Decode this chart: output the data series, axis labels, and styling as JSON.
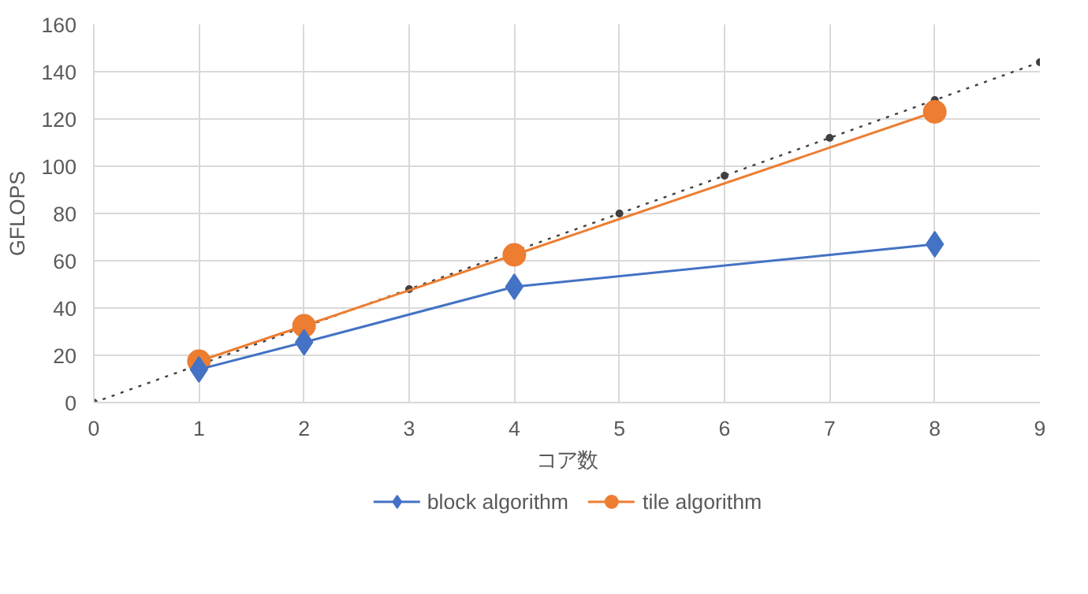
{
  "chart_data": {
    "type": "line",
    "xlabel": "コア数",
    "ylabel": "GFLOPS",
    "xlim": [
      0,
      9
    ],
    "xticks": [
      0,
      1,
      2,
      3,
      4,
      5,
      6,
      7,
      8,
      9
    ],
    "ylim": [
      0,
      160
    ],
    "yticks": [
      0,
      20,
      40,
      60,
      80,
      100,
      120,
      140,
      160
    ],
    "grid": true,
    "legend": "bottom",
    "series": [
      {
        "name": "block algorithm",
        "color": "#4472c4",
        "marker": "diamond",
        "line_style": "solid",
        "x": [
          1,
          2,
          4,
          8
        ],
        "values": [
          14,
          25.5,
          49,
          67
        ]
      },
      {
        "name": "tile algorithm",
        "color": "#ed7d31",
        "marker": "circle",
        "line_style": "solid",
        "x": [
          1,
          2,
          4,
          8
        ],
        "values": [
          17.5,
          32.5,
          62.5,
          123
        ]
      },
      {
        "color": "#404040",
        "marker": "circle",
        "line_style": "dotted",
        "x": [
          0,
          1,
          2,
          3,
          4,
          5,
          6,
          7,
          8,
          9
        ],
        "values": [
          0,
          16,
          32,
          48,
          64,
          80,
          96,
          112,
          128,
          144
        ]
      }
    ]
  }
}
